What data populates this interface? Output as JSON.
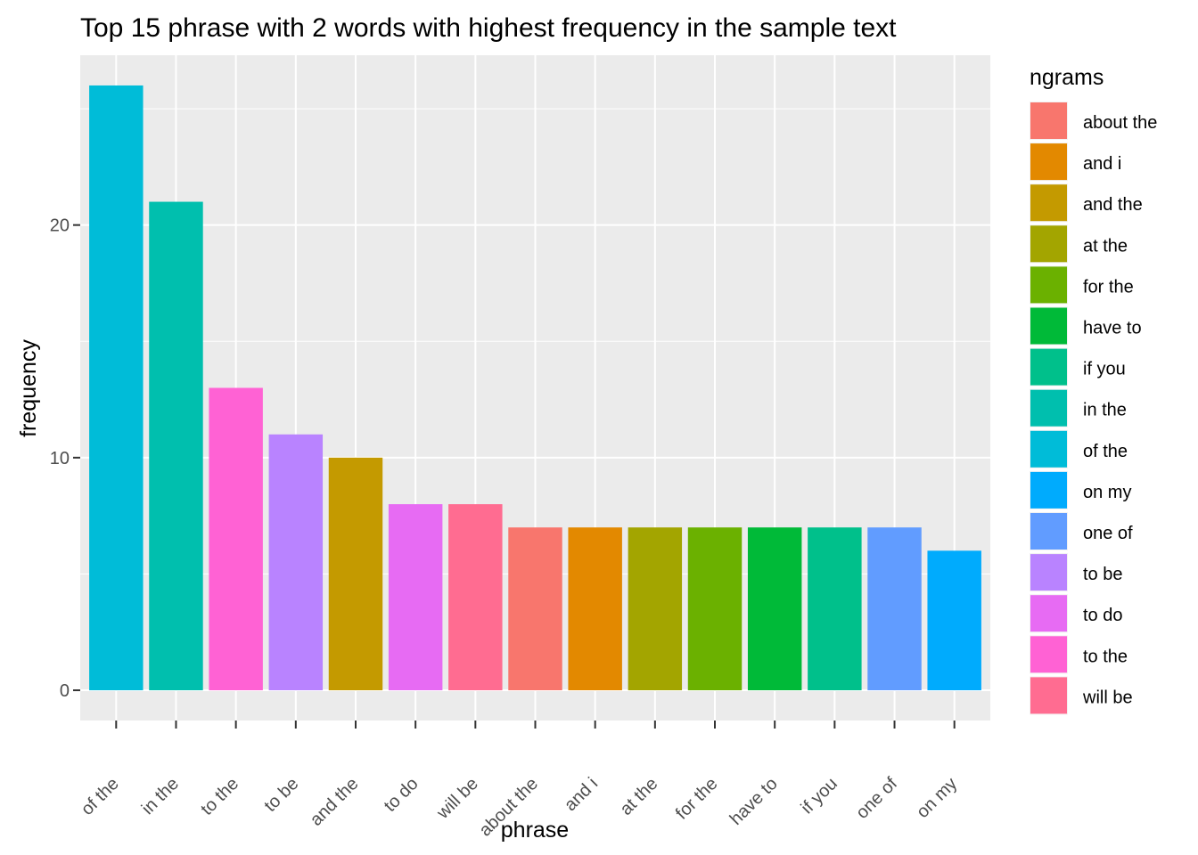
{
  "chart_data": {
    "type": "bar",
    "title": "Top 15 phrase with 2 words with highest frequency in the sample text",
    "xlabel": "phrase",
    "ylabel": "frequency",
    "ylim": [
      -1.3,
      27.3
    ],
    "yticks": [
      0,
      10,
      20
    ],
    "grid": true,
    "categories": [
      "of the",
      "in the",
      "to the",
      "to be",
      "and the",
      "to do",
      "will be",
      "about the",
      "and i",
      "at the",
      "for the",
      "have to",
      "if you",
      "one of",
      "on my"
    ],
    "values": [
      26,
      21,
      13,
      11,
      10,
      8,
      8,
      7,
      7,
      7,
      7,
      7,
      7,
      7,
      6
    ],
    "bar_colors": [
      "#00BCD8",
      "#00BFAE",
      "#FF62D4",
      "#B983FF",
      "#C49A00",
      "#E76BF3",
      "#FF6C91",
      "#F8766D",
      "#E38900",
      "#A3A500",
      "#6BB100",
      "#00BA38",
      "#00C08B",
      "#619CFF",
      "#00ABFD"
    ],
    "legend": {
      "title": "ngrams",
      "position": "right",
      "items": [
        {
          "label": "about the",
          "color": "#F8766D"
        },
        {
          "label": "and i",
          "color": "#E38900"
        },
        {
          "label": "and the",
          "color": "#C49A00"
        },
        {
          "label": "at the",
          "color": "#A3A500"
        },
        {
          "label": "for the",
          "color": "#6BB100"
        },
        {
          "label": "have to",
          "color": "#00BA38"
        },
        {
          "label": "if you",
          "color": "#00C08B"
        },
        {
          "label": "in the",
          "color": "#00BFAE"
        },
        {
          "label": "of the",
          "color": "#00BCD8"
        },
        {
          "label": "on my",
          "color": "#00ABFD"
        },
        {
          "label": "one of",
          "color": "#619CFF"
        },
        {
          "label": "to be",
          "color": "#B983FF"
        },
        {
          "label": "to do",
          "color": "#E76BF3"
        },
        {
          "label": "to the",
          "color": "#FF62D4"
        },
        {
          "label": "will be",
          "color": "#FF6C91"
        }
      ]
    }
  }
}
